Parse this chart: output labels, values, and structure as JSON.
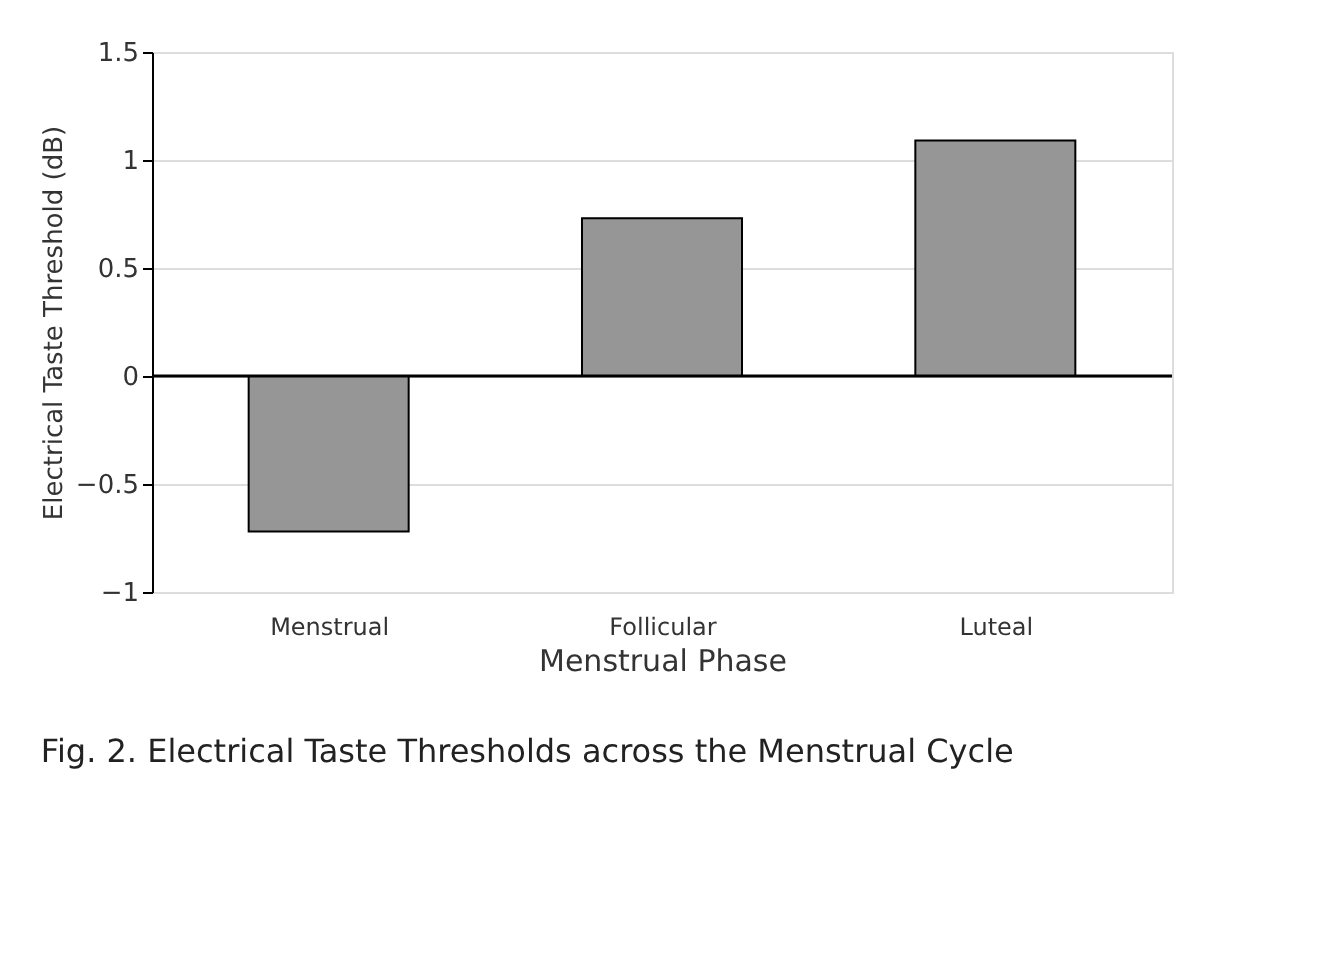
{
  "chart_data": {
    "type": "bar",
    "xlabel": "Menstrual Phase",
    "ylabel": "Electrical Taste Threshold (dB)",
    "categories": [
      "Menstrual",
      "Follicular",
      "Luteal"
    ],
    "values": [
      -0.72,
      0.73,
      1.09
    ],
    "color": "#969696",
    "ylim": [
      -1,
      1.5
    ],
    "yticks": [
      {
        "value": -1,
        "label": "−1"
      },
      {
        "value": -0.5,
        "label": "−0.5"
      },
      0,
      0.5,
      1,
      1.5
    ],
    "grid": "y",
    "ref_lines": [
      {
        "axis": "y",
        "value": 0,
        "color": "#000000"
      }
    ],
    "annotations": [
      "Fig. 2. Electrical Taste Thresholds across the Menstrual Cycle"
    ]
  }
}
